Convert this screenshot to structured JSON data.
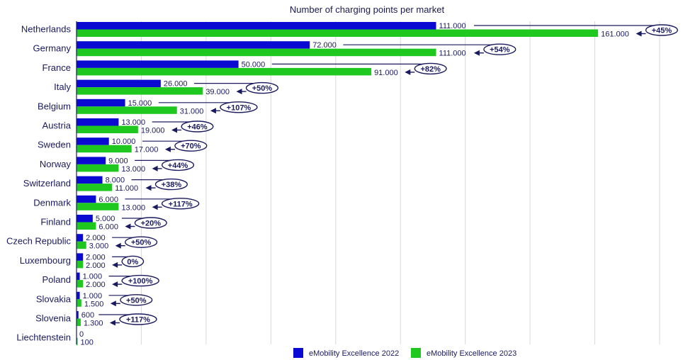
{
  "chart_data": {
    "type": "bar",
    "orientation": "horizontal",
    "title": "Number of charging points per market",
    "categories": [
      "Netherlands",
      "Germany",
      "France",
      "Italy",
      "Belgium",
      "Austria",
      "Sweden",
      "Norway",
      "Switzerland",
      "Denmark",
      "Finland",
      "Czech Republic",
      "Luxembourg",
      "Poland",
      "Slovakia",
      "Slovenia",
      "Liechtenstein"
    ],
    "series": [
      {
        "name": "eMobility Excellence 2022",
        "color": "#0a0ad2",
        "values": [
          111000,
          72000,
          50000,
          26000,
          15000,
          13000,
          10000,
          9000,
          8000,
          6000,
          5000,
          2000,
          2000,
          1000,
          1000,
          600,
          0
        ],
        "labels": [
          "111.000",
          "72.000",
          "50.000",
          "26.000",
          "15.000",
          "13.000",
          "10.000",
          "9.000",
          "8.000",
          "6.000",
          "5.000",
          "2.000",
          "2.000",
          "1.000",
          "1.000",
          "600",
          "0"
        ]
      },
      {
        "name": "eMobility Excellence 2023",
        "color": "#1ec81e",
        "values": [
          161000,
          111000,
          91000,
          39000,
          31000,
          19000,
          17000,
          13000,
          11000,
          13000,
          6000,
          3000,
          2000,
          2000,
          1500,
          1300,
          100
        ],
        "labels": [
          "161.000",
          "111.000",
          "91.000",
          "39.000",
          "31.000",
          "19.000",
          "17.000",
          "13.000",
          "11.000",
          "13.000",
          "6.000",
          "3.000",
          "2.000",
          "2.000",
          "1.500",
          "1.300",
          "100"
        ]
      }
    ],
    "change_labels": [
      "+45%",
      "+54%",
      "+82%",
      "+50%",
      "+107%",
      "+46%",
      "+70%",
      "+44%",
      "+38%",
      "+117%",
      "+20%",
      "+50%",
      "0%",
      "+100%",
      "+50%",
      "+117%",
      ""
    ],
    "xlim": [
      0,
      180000
    ],
    "grid": true,
    "legend": "bottom"
  }
}
